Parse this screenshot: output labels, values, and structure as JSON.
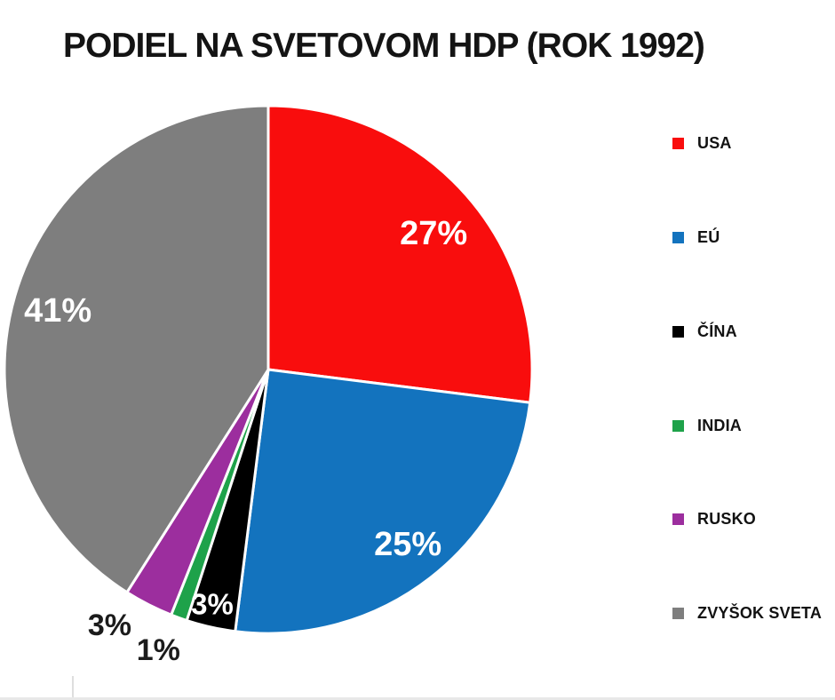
{
  "chart_data": {
    "type": "pie",
    "title": "PODIEL NA SVETOVOM HDP (ROK 1992)",
    "categories": [
      "USA",
      "EÚ",
      "ČÍNA",
      "INDIA",
      "RUSKO",
      "ZVYŠOK SVETA"
    ],
    "keys": [
      "usa",
      "eu",
      "cina",
      "india",
      "rusko",
      "zvysok-sveta"
    ],
    "values": [
      27,
      25,
      3,
      1,
      3,
      41
    ],
    "unit": "%",
    "labels": [
      "27%",
      "25%",
      "3%",
      "1%",
      "3%",
      "41%"
    ],
    "colors": [
      "#f90d0d",
      "#1373be",
      "#000000",
      "#1ea24a",
      "#9c2e9e",
      "#7e7e7e"
    ],
    "start_angle_deg": 0,
    "direction": "clockwise",
    "legend_position": "right",
    "slice_gap_color": "#ffffff"
  }
}
